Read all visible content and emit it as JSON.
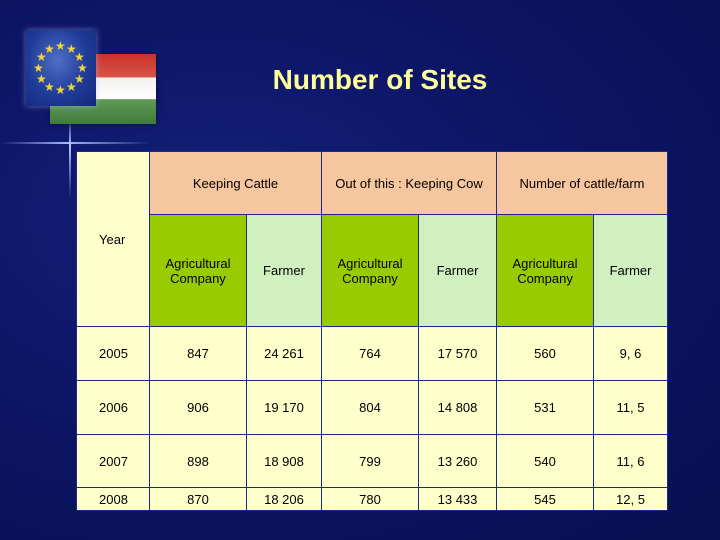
{
  "title": "Number of Sites",
  "header": {
    "year_label": "Year",
    "group1": "Keeping Cattle",
    "group2": "Out of this : Keeping Cow",
    "group3": "Number of cattle/farm",
    "sub_company": "Agricultural Company",
    "sub_farmer": "Farmer"
  },
  "rows": [
    {
      "year": "2005",
      "kc_company": "847",
      "kc_farmer": "24 261",
      "cow_company": "764",
      "cow_farmer": "17 570",
      "cpf_company": "560",
      "cpf_farmer": "9, 6"
    },
    {
      "year": "2006",
      "kc_company": "906",
      "kc_farmer": "19 170",
      "cow_company": "804",
      "cow_farmer": "14 808",
      "cpf_company": "531",
      "cpf_farmer": "11, 5"
    },
    {
      "year": "2007",
      "kc_company": "898",
      "kc_farmer": "18 908",
      "cow_company": "799",
      "cow_farmer": "13 260",
      "cpf_company": "540",
      "cpf_farmer": "11, 6"
    },
    {
      "year": "2008",
      "kc_company": "870",
      "kc_farmer": "18 206",
      "cow_company": "780",
      "cow_farmer": "13 433",
      "cpf_company": "545",
      "cpf_farmer": "12, 5"
    }
  ],
  "colors": {
    "background": "#0d1566",
    "title": "#ffff99",
    "header_peach": "#f6c69e",
    "company_green": "#99cc00",
    "farmer_green": "#d0f0c0",
    "cell_yellow": "#ffffcc"
  }
}
